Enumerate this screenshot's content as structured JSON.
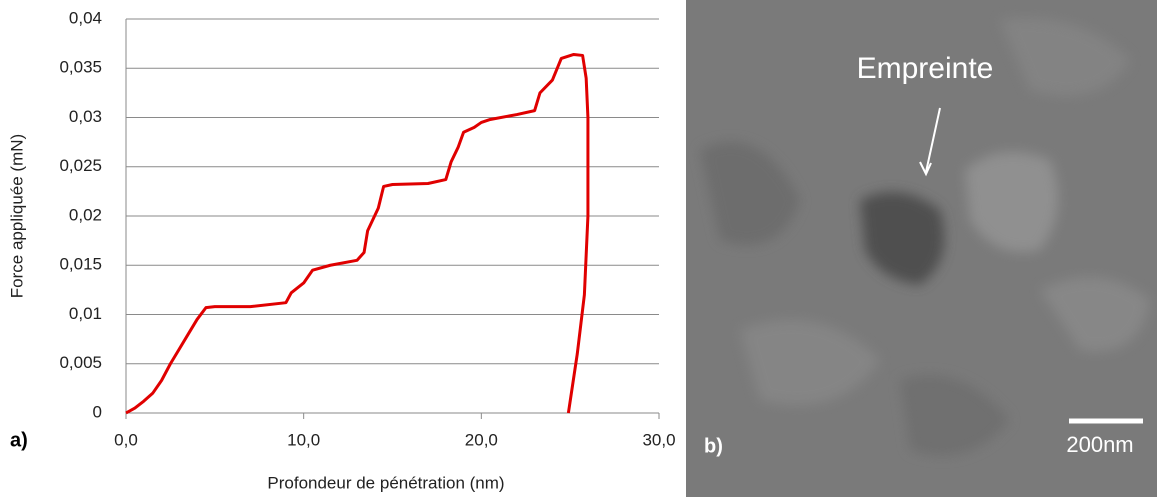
{
  "chart_data": {
    "type": "line",
    "x_label": "Profondeur de pénétration (nm)",
    "y_label": "Force appliquée (mN)",
    "panel_label": "a)",
    "x": [
      0,
      0.5,
      1,
      1.5,
      2,
      2.5,
      3,
      3.5,
      4,
      4.5,
      5,
      7,
      9,
      9.3,
      10,
      10.5,
      11.5,
      13,
      13.4,
      13.6,
      14.2,
      14.5,
      15,
      17,
      18,
      18.3,
      18.7,
      19,
      19.6,
      20,
      20.5,
      22,
      23,
      23.3,
      24,
      24.5,
      25.2,
      25.7,
      25.9,
      26,
      26,
      25.8,
      25.4,
      24.9
    ],
    "values": [
      0,
      0.0005,
      0.0012,
      0.002,
      0.0033,
      0.005,
      0.0065,
      0.008,
      0.0095,
      0.0107,
      0.0108,
      0.0108,
      0.0112,
      0.0122,
      0.0132,
      0.0145,
      0.015,
      0.0155,
      0.0163,
      0.0185,
      0.0208,
      0.023,
      0.0232,
      0.0233,
      0.0237,
      0.0255,
      0.027,
      0.0285,
      0.029,
      0.0295,
      0.0298,
      0.0303,
      0.0307,
      0.0325,
      0.0338,
      0.036,
      0.0364,
      0.0363,
      0.034,
      0.03,
      0.02,
      0.012,
      0.006,
      0
    ],
    "color": "#e00000",
    "xlim": [
      0,
      30
    ],
    "xticks": [
      {
        "value": 0,
        "label": "0,0"
      },
      {
        "value": 10,
        "label": "10,0"
      },
      {
        "value": 20,
        "label": "20,0"
      },
      {
        "value": 30,
        "label": "30,0"
      }
    ],
    "ylim": [
      0,
      0.04
    ],
    "yticks": [
      0,
      {
        "value": 0.005,
        "label": "0,005"
      },
      {
        "value": 0.01,
        "label": "0,01"
      },
      {
        "value": 0.015,
        "label": "0,015"
      },
      {
        "value": 0.02,
        "label": "0,02"
      },
      {
        "value": 0.025,
        "label": "0,025"
      },
      {
        "value": 0.03,
        "label": "0,03"
      },
      {
        "value": 0.035,
        "label": "0,035"
      },
      {
        "value": 0.04,
        "label": "0,04"
      }
    ],
    "grid": true
  },
  "image": {
    "annotation": "Empreinte",
    "scale_bar": "200nm",
    "panel_label": "b)"
  }
}
